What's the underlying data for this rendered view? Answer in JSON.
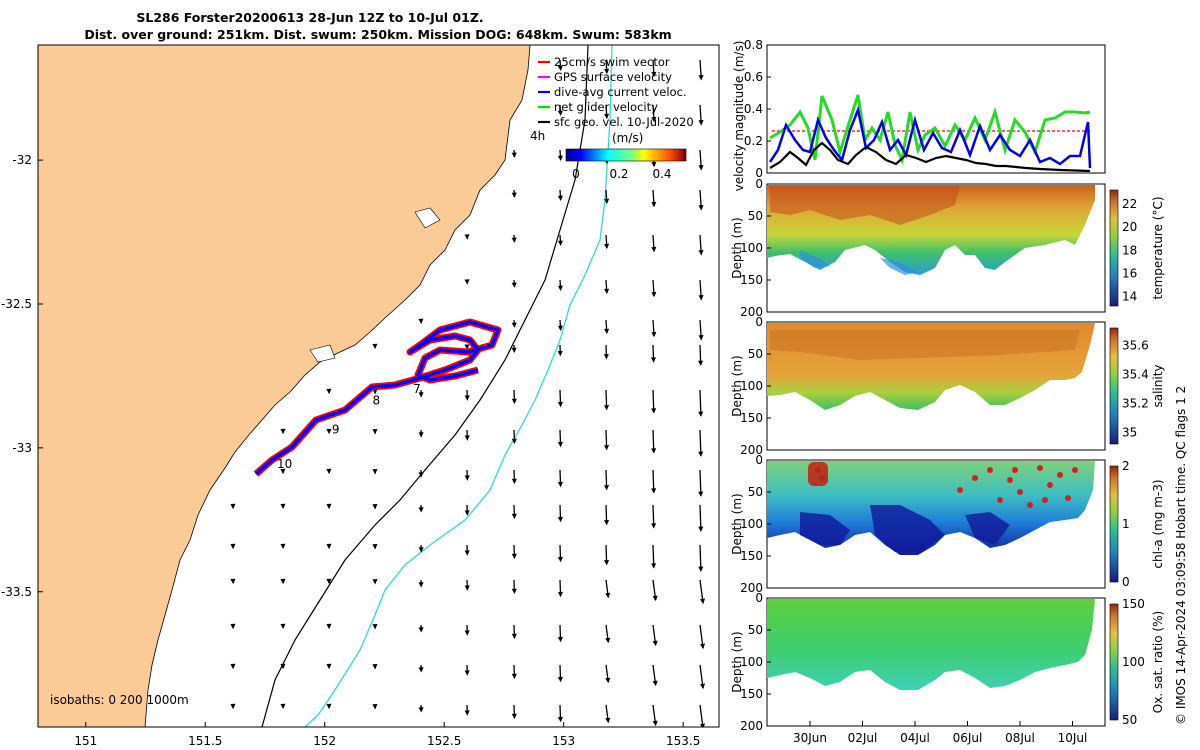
{
  "title": {
    "line1": "SL286 Forster20200613 28-Jun 12Z to 10-Jul 01Z.",
    "line2": "Dist. over ground: 251km. Dist. swum: 250km. Mission DOG: 648km. Swum: 583km"
  },
  "map": {
    "lon_ticks": [
      "151",
      "151.5",
      "152",
      "152.5",
      "153",
      "153.5"
    ],
    "lat_ticks": [
      "-32",
      "-32.5",
      "-33",
      "-33.5"
    ],
    "lon_range": [
      150.8,
      153.65
    ],
    "lat_range": [
      -33.97,
      -31.6
    ],
    "land_color": "#FACB97",
    "isobath_200_color": "#000000",
    "isobath_1000_color": "#2FD8DC",
    "isobaths_label": "isobaths: 0   200   1000m",
    "track_day_labels": [
      {
        "label": "10",
        "lon": 151.8,
        "lat": -33.07
      },
      {
        "label": "9",
        "lon": 152.03,
        "lat": -32.95
      },
      {
        "label": "8",
        "lon": 152.2,
        "lat": -32.85
      },
      {
        "label": "7",
        "lon": 152.37,
        "lat": -32.81
      }
    ],
    "legend": {
      "items": [
        {
          "label": "25cm/s swim vector",
          "color": "#ff0000"
        },
        {
          "label": "GPS surface velocity",
          "color": "#ff00ff"
        },
        {
          "label": "dive-avg current veloc.",
          "color": "#0000ff"
        },
        {
          "label": "net glider velocity",
          "color": "#00dd00"
        },
        {
          "label": "sfc geo. vel. 10-Jul-2020",
          "color": "#000000"
        }
      ],
      "hour_label": "4h",
      "colorbar_title": "(m/s)",
      "colorbar_ticks": [
        "0",
        "0.2",
        "0.4"
      ]
    }
  },
  "velocity_panel": {
    "ylabel": "velocity magnitude (m/s)",
    "yticks": [
      "0",
      "0.2",
      "0.4",
      "0.6",
      "0.8"
    ],
    "ylim": [
      0,
      0.8
    ],
    "swim_ref": 0.25
  },
  "section_panels": [
    {
      "id": "temperature",
      "ylabel": "Depth (m)",
      "yticks": [
        "0",
        "50",
        "100",
        "150",
        "200"
      ],
      "cbar_label": "temperature (°C)",
      "cbar_ticks": [
        "14",
        "16",
        "18",
        "20",
        "22"
      ]
    },
    {
      "id": "salinity",
      "ylabel": "Depth (m)",
      "yticks": [
        "0",
        "50",
        "100",
        "150",
        "200"
      ],
      "cbar_label": "salinity",
      "cbar_ticks": [
        "35",
        "35.2",
        "35.4",
        "35.6"
      ]
    },
    {
      "id": "chla",
      "ylabel": "Depth (m)",
      "yticks": [
        "0",
        "50",
        "100",
        "150",
        "200"
      ],
      "cbar_label": "chl-a (mg m-3)",
      "cbar_ticks": [
        "0",
        "1",
        "2"
      ]
    },
    {
      "id": "oxygen",
      "ylabel": "Depth (m)",
      "yticks": [
        "0",
        "50",
        "100",
        "150",
        "200"
      ],
      "cbar_label": "Ox. sat. ratio (%)",
      "cbar_ticks": [
        "50",
        "100",
        "150"
      ]
    }
  ],
  "time_ticks": [
    "30Jun",
    "02Jul",
    "04Jul",
    "06Jul",
    "08Jul",
    "10Jul"
  ],
  "credit": "© IMOS 14-Apr-2024 03:09:58 Hobart time. QC flags 1  2"
}
